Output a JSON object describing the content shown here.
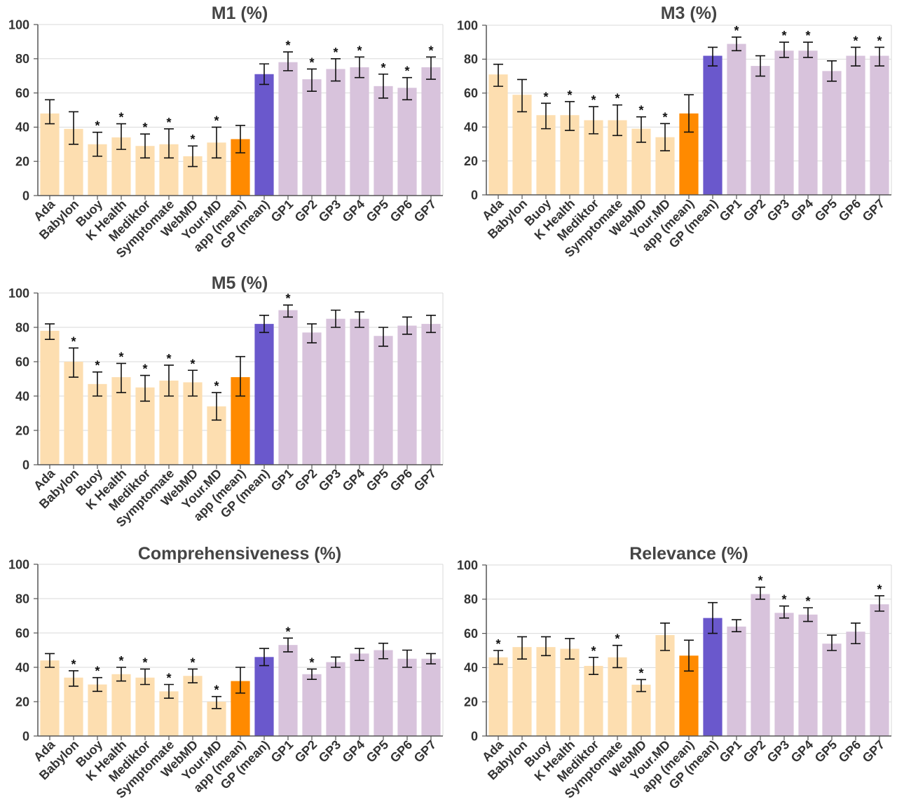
{
  "chart_data": [
    {
      "type": "bar",
      "title": "M1 (%)",
      "ylim": [
        0,
        100
      ],
      "yticks": [
        0,
        20,
        40,
        60,
        80,
        100
      ],
      "grid": true,
      "categories": [
        "Ada",
        "Babylon",
        "Buoy",
        "K Health",
        "Mediktor",
        "Symptomate",
        "WebMD",
        "Your.MD",
        "app (mean)",
        "GP (mean)",
        "GP1",
        "GP2",
        "GP3",
        "GP4",
        "GP5",
        "GP6",
        "GP7"
      ],
      "values": [
        48,
        39,
        30,
        34,
        29,
        30,
        23,
        31,
        33,
        71,
        78,
        68,
        74,
        75,
        64,
        63,
        75
      ],
      "error_low": [
        42,
        30,
        23,
        27,
        22,
        22,
        17,
        22,
        25,
        65,
        73,
        61,
        67,
        69,
        57,
        56,
        68
      ],
      "error_high": [
        56,
        49,
        37,
        42,
        36,
        39,
        29,
        40,
        41,
        77,
        84,
        74,
        80,
        81,
        71,
        69,
        81
      ],
      "significant": [
        false,
        false,
        true,
        true,
        true,
        true,
        true,
        true,
        false,
        false,
        true,
        true,
        true,
        true,
        true,
        true,
        true
      ],
      "marker": "*",
      "bar_colors": [
        "#FDDEB0",
        "#FDDEB0",
        "#FDDEB0",
        "#FDDEB0",
        "#FDDEB0",
        "#FDDEB0",
        "#FDDEB0",
        "#FDDEB0",
        "#FF8A00",
        "#6A58CC",
        "#D8C3DC",
        "#D8C3DC",
        "#D8C3DC",
        "#D8C3DC",
        "#D8C3DC",
        "#D8C3DC",
        "#D8C3DC"
      ]
    },
    {
      "type": "bar",
      "title": "M3 (%)",
      "ylim": [
        0,
        100
      ],
      "yticks": [
        0,
        20,
        40,
        60,
        80,
        100
      ],
      "grid": true,
      "categories": [
        "Ada",
        "Babylon",
        "Buoy",
        "K Health",
        "Mediktor",
        "Symptomate",
        "WebMD",
        "Your.MD",
        "app (mean)",
        "GP (mean)",
        "GP1",
        "GP2",
        "GP3",
        "GP4",
        "GP5",
        "GP6",
        "GP7"
      ],
      "values": [
        71,
        59,
        47,
        47,
        44,
        44,
        39,
        34,
        48,
        82,
        89,
        76,
        85,
        85,
        73,
        82,
        82
      ],
      "error_low": [
        64,
        49,
        39,
        38,
        36,
        35,
        31,
        26,
        37,
        76,
        85,
        70,
        81,
        81,
        67,
        76,
        76
      ],
      "error_high": [
        77,
        68,
        54,
        55,
        52,
        53,
        46,
        42,
        59,
        87,
        93,
        82,
        90,
        90,
        79,
        87,
        87
      ],
      "significant": [
        false,
        false,
        true,
        true,
        true,
        true,
        true,
        true,
        false,
        false,
        true,
        false,
        true,
        true,
        false,
        true,
        true
      ],
      "marker": "*",
      "bar_colors": [
        "#FDDEB0",
        "#FDDEB0",
        "#FDDEB0",
        "#FDDEB0",
        "#FDDEB0",
        "#FDDEB0",
        "#FDDEB0",
        "#FDDEB0",
        "#FF8A00",
        "#6A58CC",
        "#D8C3DC",
        "#D8C3DC",
        "#D8C3DC",
        "#D8C3DC",
        "#D8C3DC",
        "#D8C3DC",
        "#D8C3DC"
      ]
    },
    {
      "type": "bar",
      "title": "M5 (%)",
      "ylim": [
        0,
        100
      ],
      "yticks": [
        0,
        20,
        40,
        60,
        80,
        100
      ],
      "grid": true,
      "categories": [
        "Ada",
        "Babylon",
        "Buoy",
        "K Health",
        "Mediktor",
        "Symptomate",
        "WebMD",
        "Your.MD",
        "app (mean)",
        "GP (mean)",
        "GP1",
        "GP2",
        "GP3",
        "GP4",
        "GP5",
        "GP6",
        "GP7"
      ],
      "values": [
        78,
        60,
        47,
        51,
        45,
        49,
        48,
        34,
        51,
        82,
        90,
        77,
        85,
        85,
        75,
        81,
        82
      ],
      "error_low": [
        73,
        51,
        40,
        42,
        37,
        40,
        40,
        26,
        40,
        77,
        86,
        71,
        80,
        80,
        69,
        76,
        77
      ],
      "error_high": [
        82,
        68,
        54,
        59,
        52,
        58,
        55,
        42,
        63,
        87,
        93,
        82,
        90,
        89,
        80,
        86,
        87
      ],
      "significant": [
        false,
        true,
        true,
        true,
        true,
        true,
        true,
        true,
        false,
        false,
        true,
        false,
        false,
        false,
        false,
        false,
        false
      ],
      "marker": "*",
      "bar_colors": [
        "#FDDEB0",
        "#FDDEB0",
        "#FDDEB0",
        "#FDDEB0",
        "#FDDEB0",
        "#FDDEB0",
        "#FDDEB0",
        "#FDDEB0",
        "#FF8A00",
        "#6A58CC",
        "#D8C3DC",
        "#D8C3DC",
        "#D8C3DC",
        "#D8C3DC",
        "#D8C3DC",
        "#D8C3DC",
        "#D8C3DC"
      ]
    },
    {
      "type": "bar",
      "title": "Comprehensiveness (%)",
      "ylim": [
        0,
        100
      ],
      "yticks": [
        0,
        20,
        40,
        60,
        80,
        100
      ],
      "grid": true,
      "categories": [
        "Ada",
        "Babylon",
        "Buoy",
        "K Health",
        "Mediktor",
        "Symptomate",
        "WebMD",
        "Your.MD",
        "app (mean)",
        "GP (mean)",
        "GP1",
        "GP2",
        "GP3",
        "GP4",
        "GP5",
        "GP6",
        "GP7"
      ],
      "values": [
        44,
        34,
        30,
        36,
        34,
        26,
        35,
        20,
        32,
        46,
        53,
        36,
        43,
        48,
        50,
        45,
        45
      ],
      "error_low": [
        40,
        29,
        26,
        32,
        30,
        22,
        31,
        16,
        25,
        41,
        49,
        33,
        40,
        44,
        45,
        40,
        42
      ],
      "error_high": [
        48,
        38,
        34,
        40,
        39,
        30,
        39,
        23,
        40,
        51,
        57,
        39,
        46,
        51,
        54,
        50,
        48
      ],
      "significant": [
        false,
        true,
        true,
        true,
        true,
        true,
        true,
        true,
        false,
        false,
        true,
        true,
        false,
        false,
        false,
        false,
        false
      ],
      "marker": "*",
      "bar_colors": [
        "#FDDEB0",
        "#FDDEB0",
        "#FDDEB0",
        "#FDDEB0",
        "#FDDEB0",
        "#FDDEB0",
        "#FDDEB0",
        "#FDDEB0",
        "#FF8A00",
        "#6A58CC",
        "#D8C3DC",
        "#D8C3DC",
        "#D8C3DC",
        "#D8C3DC",
        "#D8C3DC",
        "#D8C3DC",
        "#D8C3DC"
      ]
    },
    {
      "type": "bar",
      "title": "Relevance (%)",
      "ylim": [
        0,
        100
      ],
      "yticks": [
        0,
        20,
        40,
        60,
        80,
        100
      ],
      "grid": true,
      "categories": [
        "Ada",
        "Babylon",
        "Buoy",
        "K Health",
        "Mediktor",
        "Symptomate",
        "WebMD",
        "Your.MD",
        "app (mean)",
        "GP (mean)",
        "GP1",
        "GP2",
        "GP3",
        "GP4",
        "GP5",
        "GP6",
        "GP7"
      ],
      "values": [
        46,
        52,
        52,
        51,
        41,
        46,
        30,
        59,
        47,
        69,
        64,
        83,
        72,
        71,
        54,
        61,
        77
      ],
      "error_low": [
        42,
        45,
        47,
        45,
        36,
        40,
        26,
        50,
        38,
        60,
        61,
        80,
        69,
        67,
        50,
        54,
        73
      ],
      "error_high": [
        50,
        58,
        58,
        57,
        46,
        53,
        33,
        66,
        56,
        78,
        68,
        87,
        76,
        75,
        59,
        66,
        82
      ],
      "significant": [
        true,
        false,
        false,
        false,
        true,
        true,
        true,
        false,
        false,
        false,
        false,
        true,
        true,
        true,
        false,
        false,
        true
      ],
      "marker": "*",
      "bar_colors": [
        "#FDDEB0",
        "#FDDEB0",
        "#FDDEB0",
        "#FDDEB0",
        "#FDDEB0",
        "#FDDEB0",
        "#FDDEB0",
        "#FDDEB0",
        "#FF8A00",
        "#6A58CC",
        "#D8C3DC",
        "#D8C3DC",
        "#D8C3DC",
        "#D8C3DC",
        "#D8C3DC",
        "#D8C3DC",
        "#D8C3DC"
      ]
    }
  ]
}
